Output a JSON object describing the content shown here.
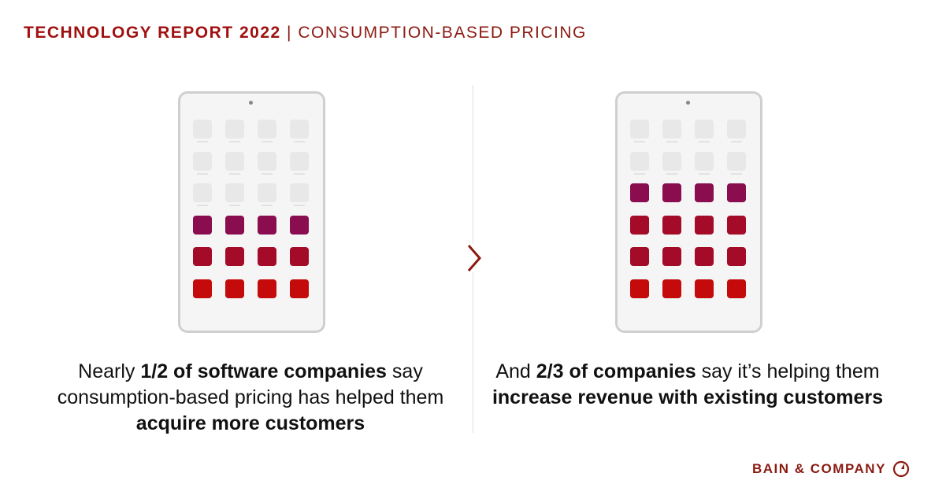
{
  "header": {
    "title_bold": "TECHNOLOGY REPORT 2022",
    "separator": " | ",
    "title_rest": "CONSUMPTION-BASED PRICING"
  },
  "left": {
    "caption": {
      "pre": "Nearly ",
      "b1": "1/2 of software companies",
      "mid": " say consumption-based pricing has helped them ",
      "b2": "acquire more customers"
    },
    "rows": [
      "gray",
      "gray",
      "gray",
      "purple",
      "crimson",
      "red"
    ]
  },
  "right": {
    "caption": {
      "pre": "And ",
      "b1": "2/3 of companies",
      "mid": " say it’s helping them ",
      "b2": "increase revenue with existing customers"
    },
    "rows": [
      "gray",
      "gray",
      "purple",
      "crimson",
      "crimson",
      "red"
    ]
  },
  "colors": {
    "gray": "#e8e8e8",
    "purple": "#8a0d4f",
    "crimson": "#a30b28",
    "red": "#c40a0a",
    "brand": "#8b1a12"
  },
  "icons": {
    "divider_arrow": "chevron-right-icon",
    "logo": "bain-logo-icon"
  },
  "footer": {
    "logo_text": "BAIN & COMPANY"
  }
}
